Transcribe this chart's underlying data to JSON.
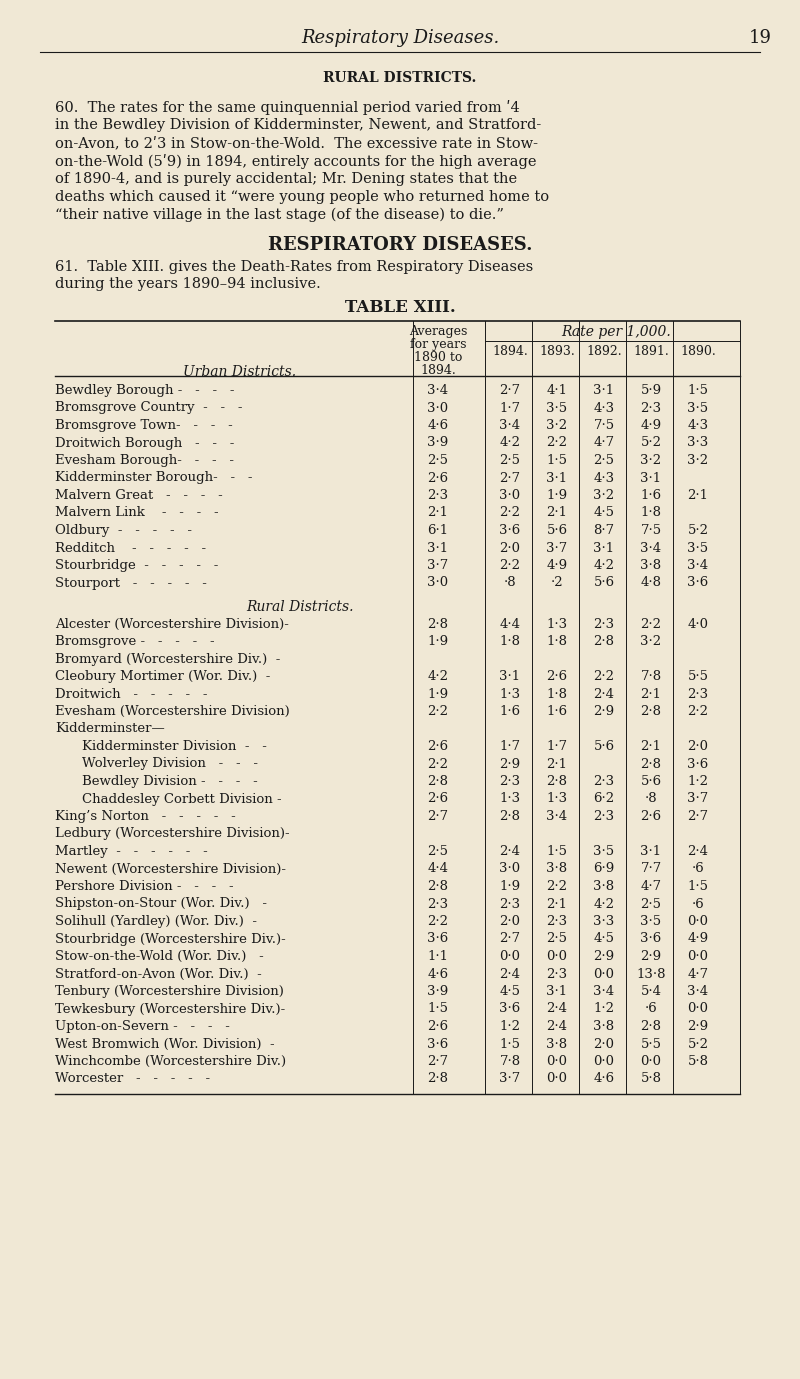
{
  "bg_color": "#f0e8d5",
  "text_color": "#1a1a1a",
  "page_header_italic": "Respiratory Diseases.",
  "page_number": "19",
  "section_heading": "RURAL DISTRICTS.",
  "para60": "60.  The rates for the same quinquennial period varied from ·4 in the Bewdley Division of Kidderminster, Newent, and Stratford-on-Avon, to 2·3 in Stow-on-the-Wold.  The excessive rate in Stow-on-the-Wold (5·9) in 1894, entirely accounts for the high average of 1890-4, and is purely accidental; Mr. Dening states that the deaths which caused it “were young people who returned home to “their native village in the last stage (of the disease) to die.”",
  "section_heading2": "RESPIRATORY DISEASES.",
  "para61": "61.  Table XIII. gives the Death-Rates from Respiratory Diseases during the years 1890–94 inclusive.",
  "table_title": "TABLE XIII.",
  "col_header_left": "Urban Districts.",
  "col_header_avg": "Averages\nfor years\n1890 to\n1894.",
  "col_header_rate": "Rate per 1,000.",
  "col_years": [
    "1894.",
    "1893.",
    "1892.",
    "1891.",
    "1890."
  ],
  "urban_rows": [
    {
      "name": "Bewdley Borough -   -   -   -",
      "avg": "3·4",
      "y1894": "2·7",
      "y1893": "4·1",
      "y1892": "3·1",
      "y1891": "5·9",
      "y1890": "1·5"
    },
    {
      "name": "Bromsgrove Country  -   -   -",
      "avg": "3·0",
      "y1894": "1·7",
      "y1893": "3·5",
      "y1892": "4·3",
      "y1891": "2·3",
      "y1890": "3·5"
    },
    {
      "name": "Bromsgrove Town-   -   -   -",
      "avg": "4·6",
      "y1894": "3·4",
      "y1893": "3·2",
      "y1892": "7·5",
      "y1891": "4·9",
      "y1890": "4·3"
    },
    {
      "name": "Droitwich Borough   -   -   -",
      "avg": "3·9",
      "y1894": "4·2",
      "y1893": "2·2",
      "y1892": "4·7",
      "y1891": "5·2",
      "y1890": "3·3"
    },
    {
      "name": "Evesham Borough-   -   -   -",
      "avg": "2·5",
      "y1894": "2·5",
      "y1893": "1·5",
      "y1892": "2·5",
      "y1891": "3·2",
      "y1890": "3·2"
    },
    {
      "name": "Kidderminster Borough-   -   -",
      "avg": "2·6",
      "y1894": "2·7",
      "y1893": "3·1",
      "y1892": "4·3",
      "y1891": "3·1",
      "y1890": ""
    },
    {
      "name": "Malvern Great   -   -   -   -",
      "avg": "2·3",
      "y1894": "3·0",
      "y1893": "1·9",
      "y1892": "3·2",
      "y1891": "1·6",
      "y1890": "2·1"
    },
    {
      "name": "Malvern Link    -   -   -   -",
      "avg": "2·1",
      "y1894": "2·2",
      "y1893": "2·1",
      "y1892": "4·5",
      "y1891": "1·8",
      "y1890": ""
    },
    {
      "name": "Oldbury  -   -   -   -   -",
      "avg": "6·1",
      "y1894": "3·6",
      "y1893": "5·6",
      "y1892": "8·7",
      "y1891": "7·5",
      "y1890": "5·2"
    },
    {
      "name": "Redditch    -   -   -   -   -",
      "avg": "3·1",
      "y1894": "2·0",
      "y1893": "3·7",
      "y1892": "3·1",
      "y1891": "3·4",
      "y1890": "3·5"
    },
    {
      "name": "Stourbridge  -   -   -   -   -",
      "avg": "3·7",
      "y1894": "2·2",
      "y1893": "4·9",
      "y1892": "4·2",
      "y1891": "3·8",
      "y1890": "3·4"
    },
    {
      "name": "Stourport   -   -   -   -   -",
      "avg": "3·0",
      "y1894": "·8",
      "y1893": "·2",
      "y1892": "5·6",
      "y1891": "4·8",
      "y1890": "3·6"
    }
  ],
  "rural_section_label": "Rural Districts.",
  "rural_rows": [
    {
      "name": "Alcester (Worcestershire Division)-",
      "avg": "2·8",
      "y1894": "4·4",
      "y1893": "1·3",
      "y1892": "2·3",
      "y1891": "2·2",
      "y1890": "4·0"
    },
    {
      "name": "Bromsgrove -   -   -   -   -",
      "avg": "1·9",
      "y1894": "1·8",
      "y1893": "1·8",
      "y1892": "2·8",
      "y1891": "3·2",
      "y1890": ""
    },
    {
      "name": "Bromyard (Worcestershire Div.)  -",
      "avg": "",
      "y1894": "",
      "y1893": "",
      "y1892": "",
      "y1891": "",
      "y1890": ""
    },
    {
      "name": "Cleobury Mortimer (Wor. Div.)  -",
      "avg": "4·2",
      "y1894": "3·1",
      "y1893": "2·6",
      "y1892": "2·2",
      "y1891": "7·8",
      "y1890": "5·5"
    },
    {
      "name": "Droitwich   -   -   -   -   -",
      "avg": "1·9",
      "y1894": "1·3",
      "y1893": "1·8",
      "y1892": "2·4",
      "y1891": "2·1",
      "y1890": "2·3"
    },
    {
      "name": "Evesham (Worcestershire Division)",
      "avg": "2·2",
      "y1894": "1·6",
      "y1893": "1·6",
      "y1892": "2·9",
      "y1891": "2·8",
      "y1890": "2·2"
    },
    {
      "name": "Kidderminster—",
      "avg": "",
      "y1894": "",
      "y1893": "",
      "y1892": "",
      "y1891": "",
      "y1890": "",
      "bullet": true
    },
    {
      "name": "    Kidderminster Division  -   -",
      "avg": "2·6",
      "y1894": "1·7",
      "y1893": "1·7",
      "y1892": "5·6",
      "y1891": "2·1",
      "y1890": "2·0",
      "indent": true
    },
    {
      "name": "    Wolverley Division   -   -   -",
      "avg": "2·2",
      "y1894": "2·9",
      "y1893": "2·1",
      "y1892": "",
      "y1891": "2·8",
      "y1890": "3·6",
      "indent": true
    },
    {
      "name": "    Bewdley Division -   -   -   -",
      "avg": "2·8",
      "y1894": "2·3",
      "y1893": "2·8",
      "y1892": "2·3",
      "y1891": "5·6",
      "y1890": "1·2",
      "indent": true
    },
    {
      "name": "    Chaddesley Corbett Division -",
      "avg": "2·6",
      "y1894": "1·3",
      "y1893": "1·3",
      "y1892": "6·2",
      "y1891": "·8",
      "y1890": "3·7",
      "indent": true
    },
    {
      "name": "King’s Norton   -   -   -   -   -",
      "avg": "2·7",
      "y1894": "2·8",
      "y1893": "3·4",
      "y1892": "2·3",
      "y1891": "2·6",
      "y1890": "2·7"
    },
    {
      "name": "Ledbury (Worcestershire Division)-",
      "avg": "",
      "y1894": "",
      "y1893": "",
      "y1892": "",
      "y1891": "",
      "y1890": ""
    },
    {
      "name": "Martley  -   -   -   -   -   -",
      "avg": "2·5",
      "y1894": "2·4",
      "y1893": "1·5",
      "y1892": "3·5",
      "y1891": "3·1",
      "y1890": "2·4"
    },
    {
      "name": "Newent (Worcestershire Division)-",
      "avg": "4·4",
      "y1894": "3·0",
      "y1893": "3·8",
      "y1892": "6·9",
      "y1891": "7·7",
      "y1890": "·6"
    },
    {
      "name": "Pershore Division -   -   -   -",
      "avg": "2·8",
      "y1894": "1·9",
      "y1893": "2·2",
      "y1892": "3·8",
      "y1891": "4·7",
      "y1890": "1·5"
    },
    {
      "name": "Shipston-on-Stour (Wor. Div.)   -",
      "avg": "2·3",
      "y1894": "2·3",
      "y1893": "2·1",
      "y1892": "4·2",
      "y1891": "2·5",
      "y1890": "·6"
    },
    {
      "name": "Solihull (Yardley) (Wor. Div.)  -",
      "avg": "2·2",
      "y1894": "2·0",
      "y1893": "2·3",
      "y1892": "3·3",
      "y1891": "3·5",
      "y1890": "0·0"
    },
    {
      "name": "Stourbridge (Worcestershire Div.)-",
      "avg": "3·6",
      "y1894": "2·7",
      "y1893": "2·5",
      "y1892": "4·5",
      "y1891": "3·6",
      "y1890": "4·9"
    },
    {
      "name": "Stow-on-the-Wold (Wor. Div.)   -",
      "avg": "1·1",
      "y1894": "0·0",
      "y1893": "0·0",
      "y1892": "2·9",
      "y1891": "2·9",
      "y1890": "0·0"
    },
    {
      "name": "Stratford-on-Avon (Wor. Div.)  -",
      "avg": "4·6",
      "y1894": "2·4",
      "y1893": "2·3",
      "y1892": "0·0",
      "y1891": "13·8",
      "y1890": "4·7"
    },
    {
      "name": "Tenbury (Worcestershire Division)",
      "avg": "3·9",
      "y1894": "4·5",
      "y1893": "3·1",
      "y1892": "3·4",
      "y1891": "5·4",
      "y1890": "3·4"
    },
    {
      "name": "Tewkesbury (Worcestershire Div.)-",
      "avg": "1·5",
      "y1894": "3·6",
      "y1893": "2·4",
      "y1892": "1·2",
      "y1891": "·6",
      "y1890": "0·0"
    },
    {
      "name": "Upton-on-Severn -   -   -   -",
      "avg": "2·6",
      "y1894": "1·2",
      "y1893": "2·4",
      "y1892": "3·8",
      "y1891": "2·8",
      "y1890": "2·9"
    },
    {
      "name": "West Bromwich (Wor. Division)  -",
      "avg": "3·6",
      "y1894": "1·5",
      "y1893": "3·8",
      "y1892": "2·0",
      "y1891": "5·5",
      "y1890": "5·2"
    },
    {
      "name": "Winchcombe (Worcestershire Div.)",
      "avg": "2·7",
      "y1894": "7·8",
      "y1893": "0·0",
      "y1892": "0·0",
      "y1891": "0·0",
      "y1890": "5·8"
    },
    {
      "name": "Worcester   -   -   -   -   -",
      "avg": "2·8",
      "y1894": "3·7",
      "y1893": "0·0",
      "y1892": "4·6",
      "y1891": "5·8",
      "y1890": ""
    }
  ]
}
